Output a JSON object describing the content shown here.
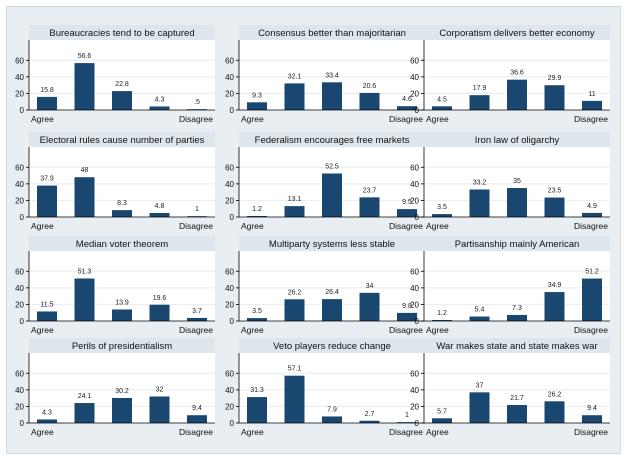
{
  "chart_data": [
    {
      "type": "bar",
      "title": "Bureaucracies tend to be captured",
      "values": [
        15.8,
        56.6,
        22.8,
        4.3,
        0.5
      ],
      "value_labels": [
        "15.8",
        "56.6",
        "22.8",
        "4.3",
        ".5"
      ],
      "ylim": [
        0,
        70
      ],
      "yticks": [
        "0",
        "20",
        "40",
        "60"
      ],
      "x_start_label": "Agree",
      "x_end_label": "Disagree"
    },
    {
      "type": "bar",
      "title": "Consensus better than majoritarian",
      "values": [
        9.3,
        32.1,
        33.4,
        20.6,
        4.6
      ],
      "value_labels": [
        "9.3",
        "32.1",
        "33.4",
        "20.6",
        "4.6"
      ],
      "ylim": [
        0,
        70
      ],
      "yticks": [
        "0",
        "20",
        "40",
        "60"
      ],
      "x_start_label": "Agree",
      "x_end_label": "Disagree"
    },
    {
      "type": "bar",
      "title": "Corporatism delivers better economy",
      "values": [
        4.5,
        17.9,
        36.6,
        29.9,
        11
      ],
      "value_labels": [
        "4.5",
        "17.9",
        "36.6",
        "29.9",
        "11"
      ],
      "ylim": [
        0,
        70
      ],
      "yticks": [
        "0",
        "20",
        "40",
        "60"
      ],
      "x_start_label": "Agree",
      "x_end_label": "Disagree"
    },
    {
      "type": "bar",
      "title": "Electoral rules cause number of parties",
      "values": [
        37.9,
        48,
        8.3,
        4.8,
        1
      ],
      "value_labels": [
        "37.9",
        "48",
        "8.3",
        "4.8",
        "1"
      ],
      "ylim": [
        0,
        70
      ],
      "yticks": [
        "0",
        "20",
        "40",
        "60"
      ],
      "x_start_label": "Agree",
      "x_end_label": "Disagree"
    },
    {
      "type": "bar",
      "title": "Federalism encourages free markets",
      "values": [
        1.2,
        13.1,
        52.5,
        23.7,
        9.5
      ],
      "value_labels": [
        "1.2",
        "13.1",
        "52.5",
        "23.7",
        "9.5"
      ],
      "ylim": [
        0,
        70
      ],
      "yticks": [
        "0",
        "20",
        "40",
        "60"
      ],
      "x_start_label": "Agree",
      "x_end_label": "Disagree"
    },
    {
      "type": "bar",
      "title": "Iron law of oligarchy",
      "values": [
        3.5,
        33.2,
        35,
        23.5,
        4.9
      ],
      "value_labels": [
        "3.5",
        "33.2",
        "35",
        "23.5",
        "4.9"
      ],
      "ylim": [
        0,
        70
      ],
      "yticks": [
        "0",
        "20",
        "40",
        "60"
      ],
      "x_start_label": "Agree",
      "x_end_label": "Disagree"
    },
    {
      "type": "bar",
      "title": "Median voter theorem",
      "values": [
        11.5,
        51.3,
        13.9,
        19.6,
        3.7
      ],
      "value_labels": [
        "11.5",
        "51.3",
        "13.9",
        "19.6",
        "3.7"
      ],
      "ylim": [
        0,
        70
      ],
      "yticks": [
        "0",
        "20",
        "40",
        "60"
      ],
      "x_start_label": "Agree",
      "x_end_label": "Disagree"
    },
    {
      "type": "bar",
      "title": "Multiparty systems less stable",
      "values": [
        3.5,
        26.2,
        26.4,
        34,
        9.8
      ],
      "value_labels": [
        "3.5",
        "26.2",
        "26.4",
        "34",
        "9.8"
      ],
      "ylim": [
        0,
        70
      ],
      "yticks": [
        "0",
        "20",
        "40",
        "60"
      ],
      "x_start_label": "Agree",
      "x_end_label": "Disagree"
    },
    {
      "type": "bar",
      "title": "Partisanship mainly American",
      "values": [
        1.2,
        5.4,
        7.3,
        34.9,
        51.2
      ],
      "value_labels": [
        "1.2",
        "5.4",
        "7.3",
        "34.9",
        "51.2"
      ],
      "ylim": [
        0,
        70
      ],
      "yticks": [
        "0",
        "20",
        "40",
        "60"
      ],
      "x_start_label": "Agree",
      "x_end_label": "Disagree"
    },
    {
      "type": "bar",
      "title": "Perils of presidentialism",
      "values": [
        4.3,
        24.1,
        30.2,
        32,
        9.4
      ],
      "value_labels": [
        "4.3",
        "24.1",
        "30.2",
        "32",
        "9.4"
      ],
      "ylim": [
        0,
        70
      ],
      "yticks": [
        "0",
        "20",
        "40",
        "60"
      ],
      "x_start_label": "Agree",
      "x_end_label": "Disagree"
    },
    {
      "type": "bar",
      "title": "Veto players reduce change",
      "values": [
        31.3,
        57.1,
        7.9,
        2.7,
        1
      ],
      "value_labels": [
        "31.3",
        "57.1",
        "7.9",
        "2.7",
        "1"
      ],
      "ylim": [
        0,
        70
      ],
      "yticks": [
        "0",
        "20",
        "40",
        "60"
      ],
      "x_start_label": "Agree",
      "x_end_label": "Disagree"
    },
    {
      "type": "bar",
      "title": "War makes state and state makes war",
      "values": [
        5.7,
        37,
        21.7,
        26.2,
        9.4
      ],
      "value_labels": [
        "5.7",
        "37",
        "21.7",
        "26.2",
        "9.4"
      ],
      "ylim": [
        0,
        70
      ],
      "yticks": [
        "0",
        "20",
        "40",
        "60"
      ],
      "x_start_label": "Agree",
      "x_end_label": "Disagree"
    }
  ],
  "colors": {
    "bar": "#1a476f",
    "title_bg": "#dde6ed",
    "panel_bg": "#ffffff",
    "frame_bg": "#e8eef2",
    "grid": "#e4ebf1",
    "axis": "#000000"
  }
}
